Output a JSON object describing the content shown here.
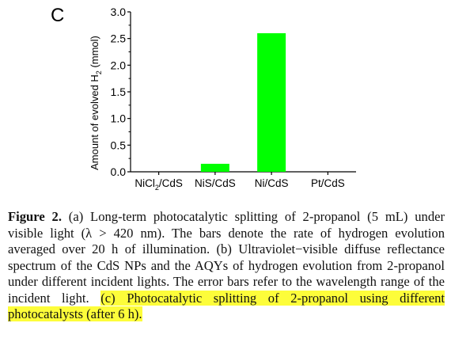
{
  "panel_label": "C",
  "chart_data": {
    "type": "bar",
    "categories": [
      "NiCl2/CdS",
      "NiS/CdS",
      "Ni/CdS",
      "Pt/CdS"
    ],
    "category_labels": [
      {
        "main": "NiCl",
        "sub": "2",
        "rest": "/CdS"
      },
      {
        "main": "NiS/CdS",
        "sub": "",
        "rest": ""
      },
      {
        "main": "Ni/CdS",
        "sub": "",
        "rest": ""
      },
      {
        "main": "Pt/CdS",
        "sub": "",
        "rest": ""
      }
    ],
    "values": [
      0.0,
      0.15,
      2.6,
      0.0
    ],
    "ylabel": {
      "pre": "Amount of evolved H",
      "sub": "2",
      "post": " (mmol)"
    },
    "ylim": [
      0,
      3.0
    ],
    "yticks": [
      "0.0",
      "0.5",
      "1.0",
      "1.5",
      "2.0",
      "2.5",
      "3.0"
    ],
    "bar_color": "#00ff00",
    "grid": false
  },
  "caption": {
    "label": "Figure 2.",
    "text_plain": " (a) Long-term photocatalytic splitting of 2-propanol (5 mL) under visible light (λ > 420 nm). The bars denote the rate of hydrogen evolution averaged over 20 h of illumination. (b) Ultraviolet−visible diffuse reflectance spectrum of the CdS NPs and the AQYs of hydrogen evolution from 2-propanol under different incident lights. The error bars refer to the wavelength range of the incident light. ",
    "text_highlight": "(c) Photocatalytic splitting of 2-propanol using different photocatalysts (after 6 h).",
    "highlight_color": "#fdfd3a"
  }
}
